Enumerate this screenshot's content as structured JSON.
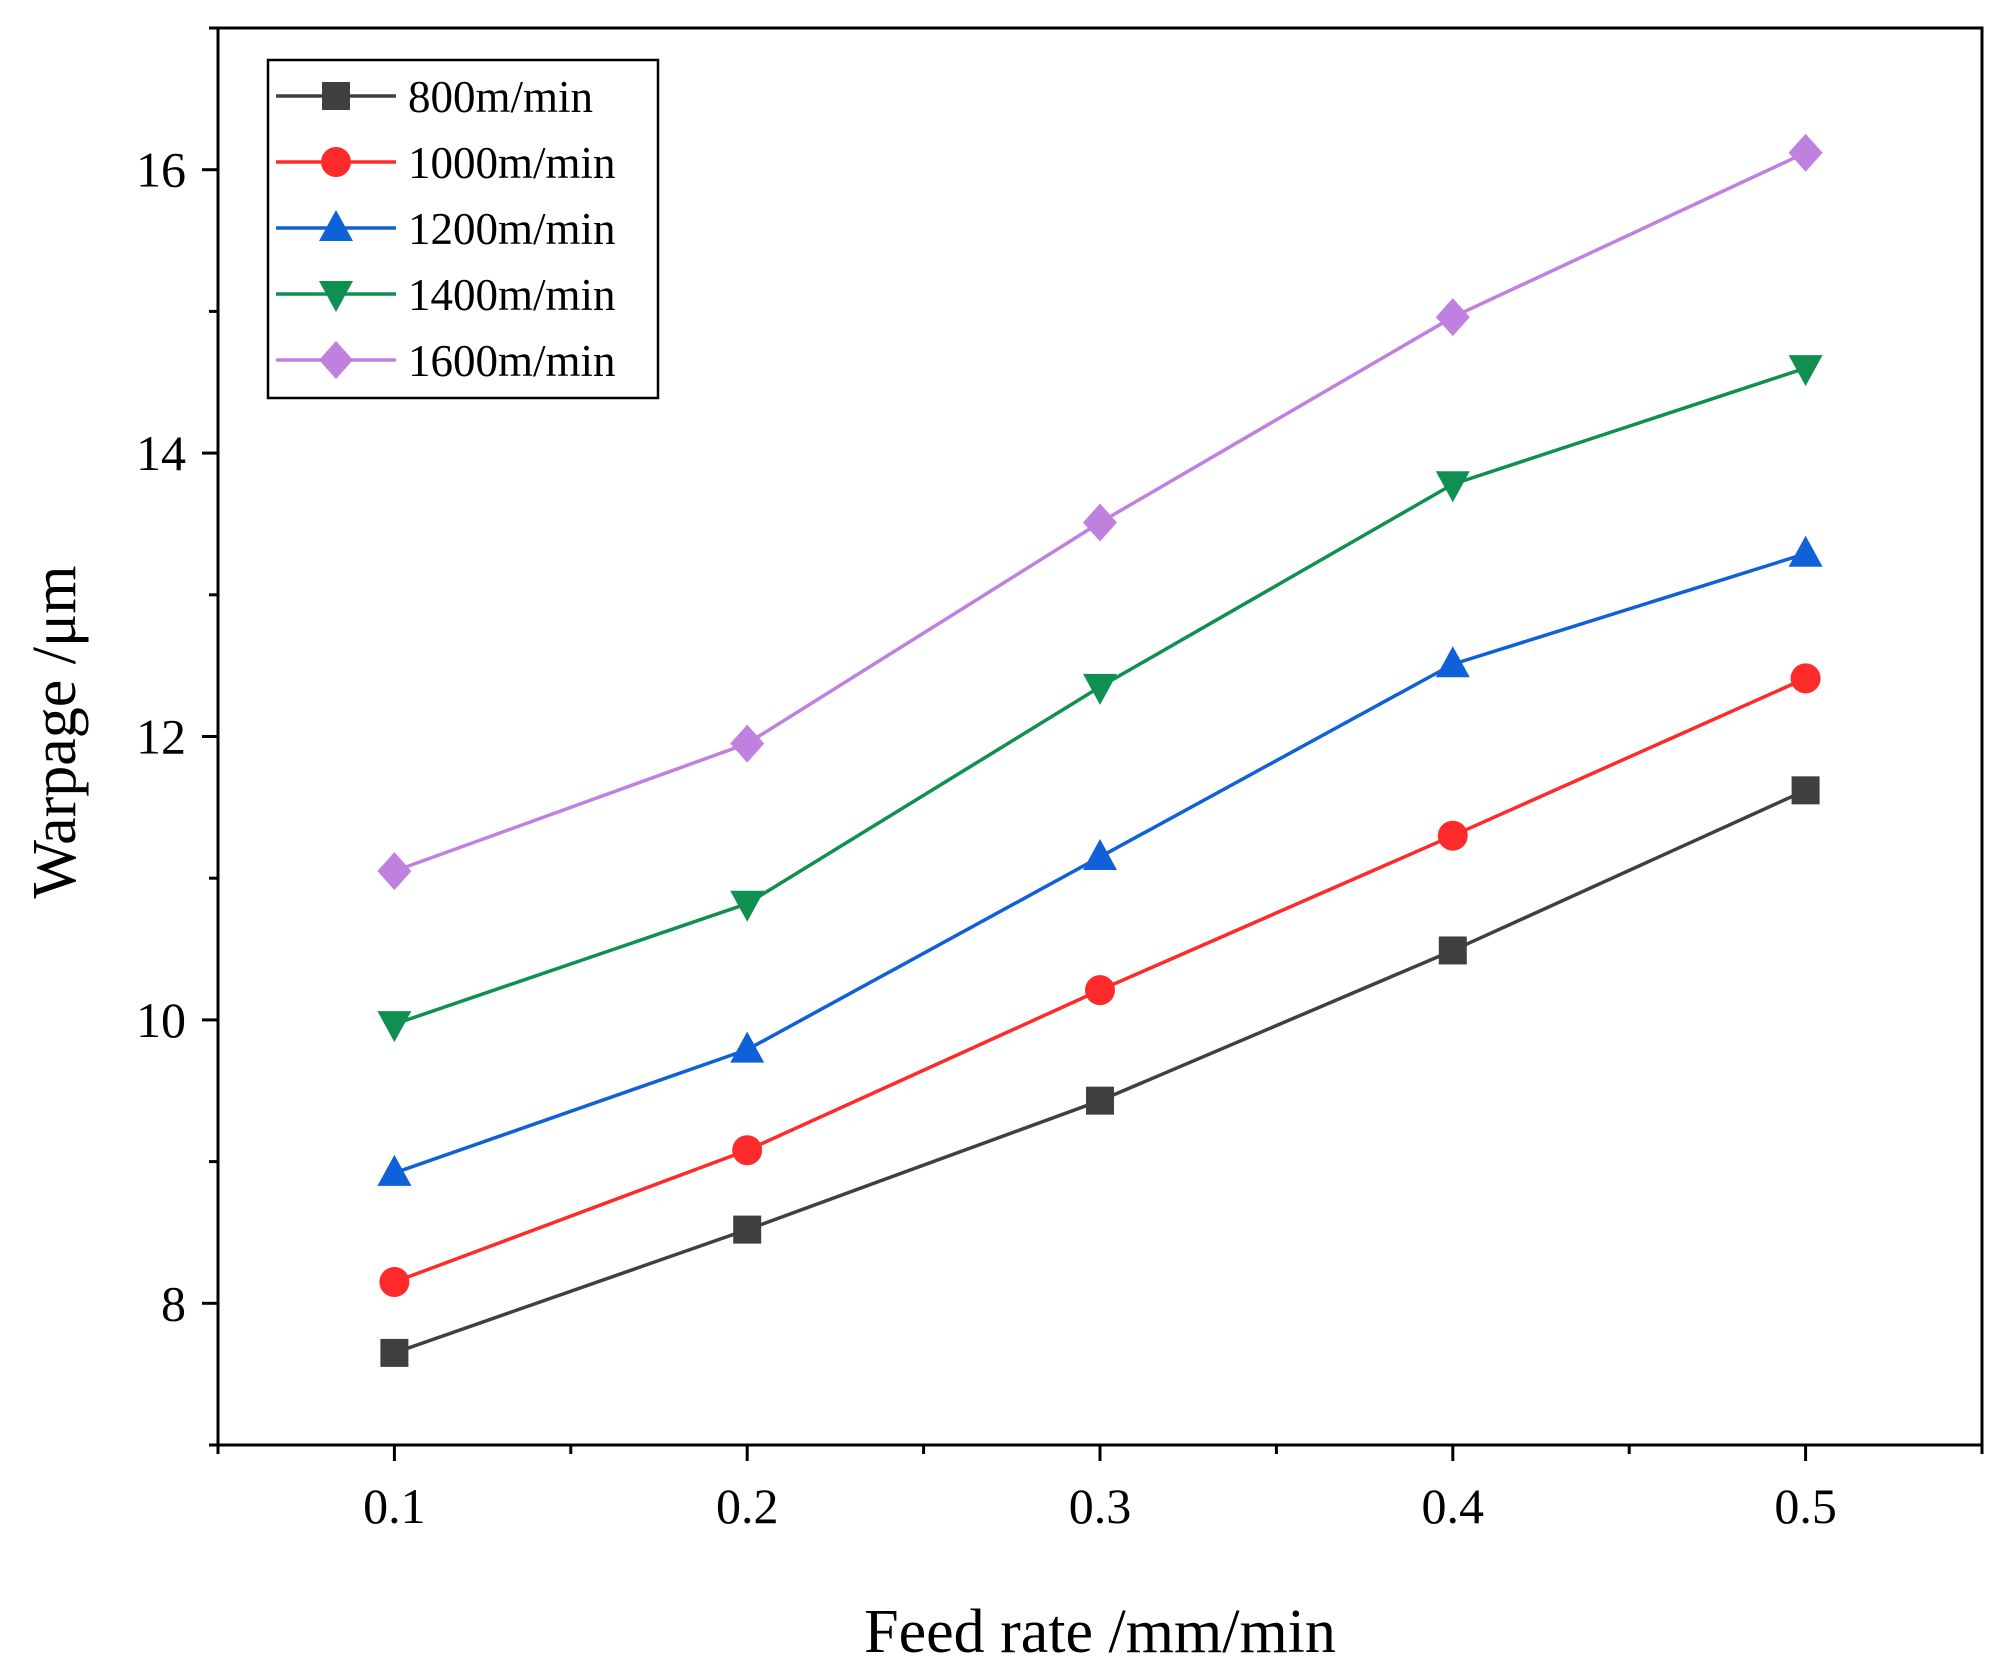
{
  "chart_data": {
    "type": "line",
    "title": "",
    "xlabel": "Feed rate /mm/min",
    "ylabel": "Warpage /μm",
    "xlim": [
      0.05,
      0.55
    ],
    "ylim": [
      7,
      17
    ],
    "x_ticks": [
      0.1,
      0.2,
      0.3,
      0.4,
      0.5
    ],
    "x_tick_labels": [
      "0.1",
      "0.2",
      "0.3",
      "0.4",
      "0.5"
    ],
    "x_minor_ticks": [
      0.05,
      0.15,
      0.25,
      0.35,
      0.45,
      0.55
    ],
    "y_ticks": [
      8,
      10,
      12,
      14,
      16
    ],
    "y_tick_labels": [
      "8",
      "10",
      "12",
      "14",
      "16"
    ],
    "y_minor_ticks": [
      7,
      9,
      11,
      13,
      15,
      17
    ],
    "grid": false,
    "legend_position": "top-left",
    "x": [
      0.1,
      0.2,
      0.3,
      0.4,
      0.5
    ],
    "series": [
      {
        "name": "800m/min",
        "color": "#404040",
        "marker": "square",
        "values": [
          7.65,
          8.52,
          9.43,
          10.49,
          11.62
        ]
      },
      {
        "name": "1000m/min",
        "color": "#ff2a2a",
        "marker": "circle",
        "values": [
          8.15,
          9.08,
          10.21,
          11.3,
          12.41
        ]
      },
      {
        "name": "1200m/min",
        "color": "#1060d8",
        "marker": "triangle-up",
        "values": [
          8.92,
          9.79,
          11.15,
          12.51,
          13.29
        ]
      },
      {
        "name": "1400m/min",
        "color": "#109050",
        "marker": "triangle-down",
        "values": [
          9.97,
          10.82,
          12.35,
          13.78,
          14.6
        ]
      },
      {
        "name": "1600m/min",
        "color": "#c080e0",
        "marker": "diamond",
        "values": [
          11.05,
          11.95,
          13.51,
          14.96,
          16.12
        ]
      }
    ]
  }
}
